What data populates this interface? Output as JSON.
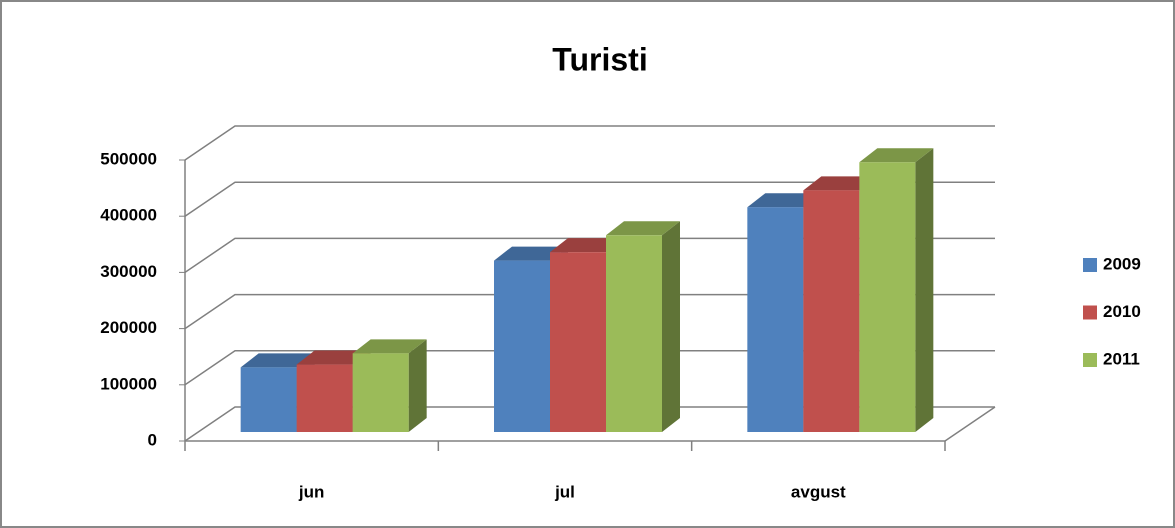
{
  "chart_data": {
    "type": "bar3d",
    "title": "Turisti",
    "categories": [
      "jun",
      "jul",
      "avgust"
    ],
    "series": [
      {
        "name": "2009",
        "color": "#4f81bd",
        "values": [
          115000,
          305000,
          400000
        ]
      },
      {
        "name": "2010",
        "color": "#c0504d",
        "values": [
          120000,
          320000,
          430000
        ]
      },
      {
        "name": "2011",
        "color": "#9bbb59",
        "values": [
          140000,
          350000,
          480000
        ]
      }
    ],
    "ylim": [
      0,
      500000
    ],
    "yticks": [
      0,
      100000,
      200000,
      300000,
      400000,
      500000
    ],
    "grid": true,
    "legend": "right"
  }
}
